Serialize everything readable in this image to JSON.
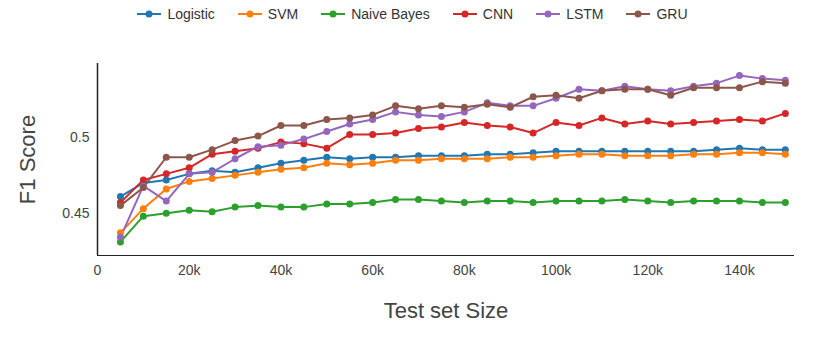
{
  "chart_data": {
    "type": "line",
    "x_label": "Test set Size",
    "y_label": "F1 Score",
    "x": [
      5000,
      10000,
      15000,
      20000,
      25000,
      30000,
      35000,
      40000,
      45000,
      50000,
      55000,
      60000,
      65000,
      70000,
      75000,
      80000,
      85000,
      90000,
      95000,
      100000,
      105000,
      110000,
      115000,
      120000,
      125000,
      130000,
      135000,
      140000,
      145000,
      150000
    ],
    "xlim": [
      0,
      152000
    ],
    "xticks": [
      0,
      {
        "value": 20000,
        "label": "20k"
      },
      {
        "value": 40000,
        "label": "40k"
      },
      {
        "value": 60000,
        "label": "60k"
      },
      {
        "value": 80000,
        "label": "80k"
      },
      {
        "value": 100000,
        "label": "100k"
      },
      {
        "value": 120000,
        "label": "120k"
      },
      {
        "value": 140000,
        "label": "140k"
      }
    ],
    "ylim": [
      0.422,
      0.549
    ],
    "yticks": [
      0.45,
      0.5
    ],
    "grid": false,
    "legend": "top",
    "marker": "circle",
    "series": [
      {
        "name": "Logistic",
        "color": "#1f77b4",
        "values": [
          0.461,
          0.47,
          0.472,
          0.476,
          0.478,
          0.477,
          0.48,
          0.483,
          0.485,
          0.487,
          0.486,
          0.487,
          0.487,
          0.488,
          0.488,
          0.488,
          0.489,
          0.489,
          0.49,
          0.491,
          0.491,
          0.491,
          0.491,
          0.491,
          0.491,
          0.491,
          0.492,
          0.493,
          0.492,
          0.492
        ]
      },
      {
        "name": "SVM",
        "color": "#ff7f0e",
        "values": [
          0.437,
          0.453,
          0.466,
          0.471,
          0.473,
          0.475,
          0.477,
          0.479,
          0.48,
          0.483,
          0.482,
          0.483,
          0.485,
          0.485,
          0.486,
          0.486,
          0.486,
          0.487,
          0.487,
          0.488,
          0.489,
          0.489,
          0.488,
          0.488,
          0.488,
          0.489,
          0.489,
          0.49,
          0.49,
          0.489
        ]
      },
      {
        "name": "Naive Bayes",
        "color": "#2ca02c",
        "values": [
          0.431,
          0.448,
          0.45,
          0.452,
          0.451,
          0.454,
          0.455,
          0.454,
          0.454,
          0.456,
          0.456,
          0.457,
          0.459,
          0.459,
          0.458,
          0.457,
          0.458,
          0.458,
          0.457,
          0.458,
          0.458,
          0.458,
          0.459,
          0.458,
          0.457,
          0.458,
          0.458,
          0.458,
          0.457,
          0.457
        ]
      },
      {
        "name": "CNN",
        "color": "#d62728",
        "values": [
          0.457,
          0.472,
          0.476,
          0.48,
          0.489,
          0.491,
          0.493,
          0.497,
          0.496,
          0.493,
          0.502,
          0.502,
          0.503,
          0.506,
          0.507,
          0.51,
          0.508,
          0.507,
          0.503,
          0.51,
          0.508,
          0.513,
          0.509,
          0.511,
          0.509,
          0.51,
          0.511,
          0.512,
          0.511,
          0.516
        ]
      },
      {
        "name": "LSTM",
        "color": "#9467bd",
        "values": [
          0.434,
          0.468,
          0.458,
          0.476,
          0.477,
          0.486,
          0.494,
          0.495,
          0.499,
          0.504,
          0.509,
          0.512,
          0.517,
          0.515,
          0.514,
          0.517,
          0.523,
          0.521,
          0.521,
          0.526,
          0.532,
          0.531,
          0.534,
          0.532,
          0.531,
          0.534,
          0.536,
          0.541,
          0.539,
          0.538
        ]
      },
      {
        "name": "GRU",
        "color": "#8c564b",
        "values": [
          0.455,
          0.467,
          0.487,
          0.487,
          0.492,
          0.498,
          0.501,
          0.508,
          0.508,
          0.512,
          0.513,
          0.515,
          0.521,
          0.519,
          0.521,
          0.52,
          0.522,
          0.52,
          0.527,
          0.528,
          0.526,
          0.531,
          0.532,
          0.532,
          0.528,
          0.533,
          0.533,
          0.533,
          0.537,
          0.536
        ]
      }
    ]
  }
}
